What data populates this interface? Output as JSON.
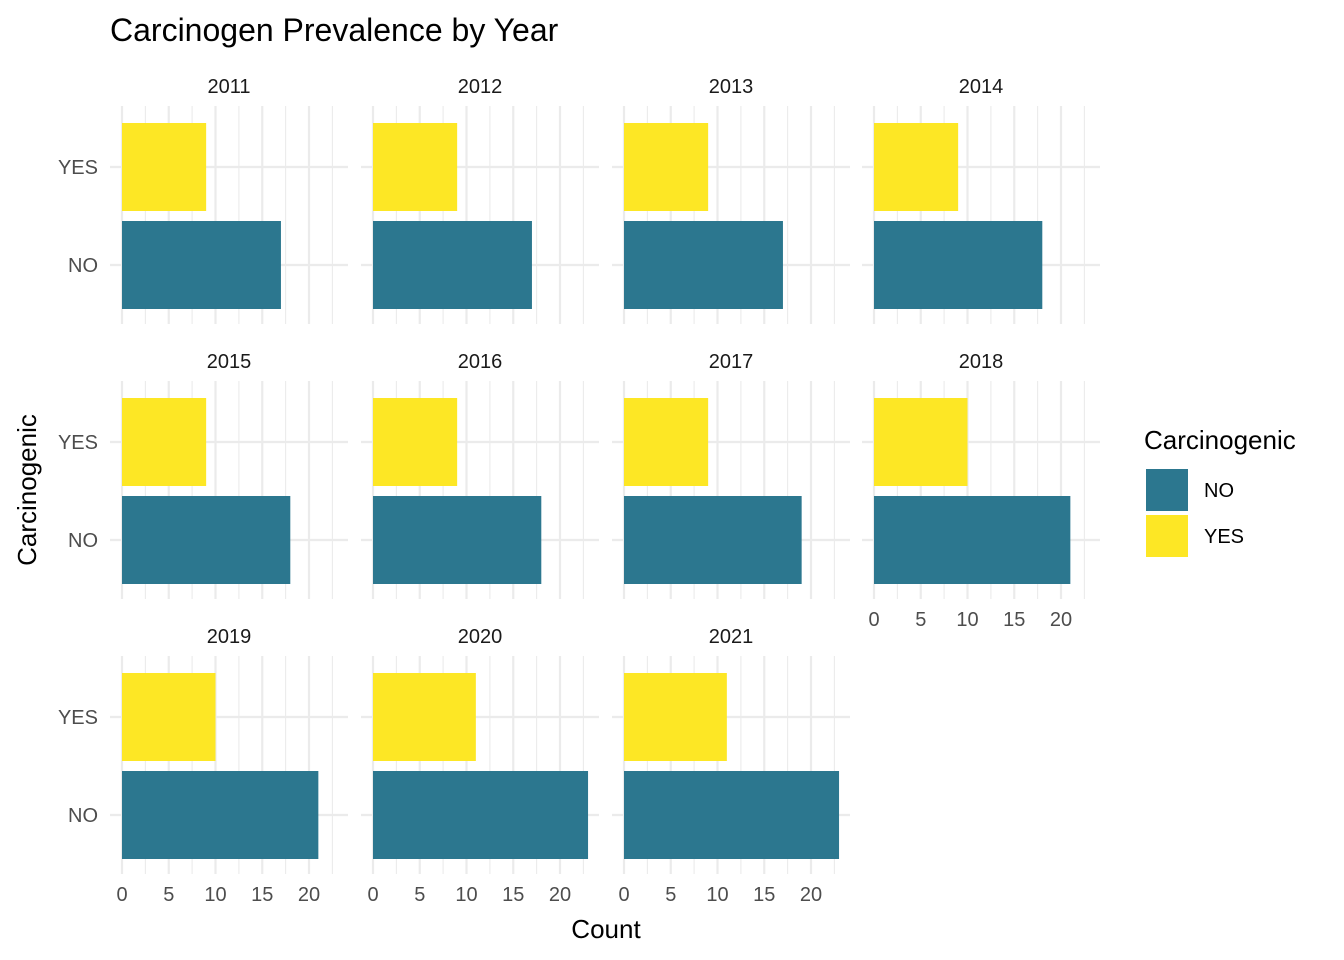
{
  "chart_data": {
    "type": "bar",
    "orientation": "horizontal",
    "title": "Carcinogen Prevalence by Year",
    "xlabel": "Count",
    "ylabel": "Carcinogenic",
    "categories": [
      "NO",
      "YES"
    ],
    "xlim": [
      0,
      23
    ],
    "x_ticks": [
      0,
      5,
      10,
      15,
      20
    ],
    "grid": true,
    "legend": {
      "title": "Carcinogenic",
      "placement": "right",
      "entries": [
        {
          "label": "NO",
          "color": "#2C778F"
        },
        {
          "label": "YES",
          "color": "#FDE725"
        }
      ]
    },
    "panels": [
      {
        "year": "2011",
        "values": {
          "NO": 17,
          "YES": 9
        }
      },
      {
        "year": "2012",
        "values": {
          "NO": 17,
          "YES": 9
        }
      },
      {
        "year": "2013",
        "values": {
          "NO": 17,
          "YES": 9
        }
      },
      {
        "year": "2014",
        "values": {
          "NO": 18,
          "YES": 9
        }
      },
      {
        "year": "2015",
        "values": {
          "NO": 18,
          "YES": 9
        }
      },
      {
        "year": "2016",
        "values": {
          "NO": 18,
          "YES": 9
        }
      },
      {
        "year": "2017",
        "values": {
          "NO": 19,
          "YES": 9
        }
      },
      {
        "year": "2018",
        "values": {
          "NO": 21,
          "YES": 10
        }
      },
      {
        "year": "2019",
        "values": {
          "NO": 21,
          "YES": 10
        }
      },
      {
        "year": "2020",
        "values": {
          "NO": 23,
          "YES": 11
        }
      },
      {
        "year": "2021",
        "values": {
          "NO": 23,
          "YES": 11
        }
      }
    ]
  }
}
